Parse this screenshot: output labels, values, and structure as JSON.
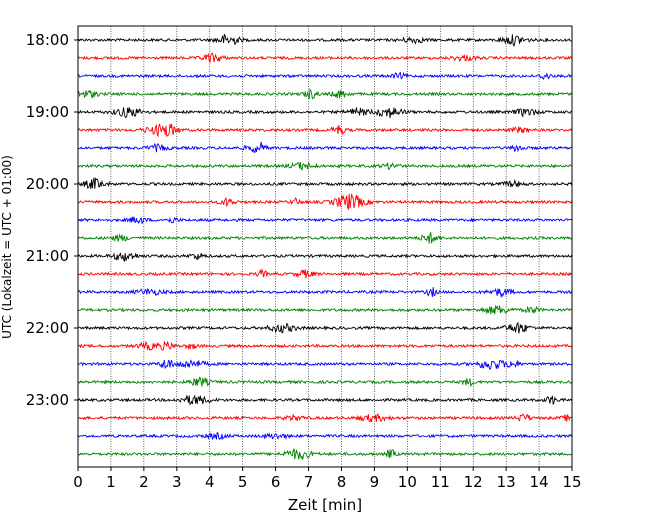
{
  "chart_data": {
    "type": "line",
    "subtype": "helicorder seismogram",
    "xlabel": "Zeit  [min]",
    "ylabel": "UTC (Lokalzeit = UTC + 01:00)",
    "xlim": [
      0,
      15
    ],
    "x_ticks": [
      "0",
      "1",
      "2",
      "3",
      "4",
      "5",
      "6",
      "7",
      "8",
      "9",
      "10",
      "11",
      "12",
      "13",
      "14",
      "15"
    ],
    "y_tick_labels": [
      "18:00",
      "19:00",
      "20:00",
      "21:00",
      "22:00",
      "23:00"
    ],
    "minutes_per_trace": 15,
    "traces_per_hour": 4,
    "trace_count": 24,
    "trace_colors": [
      "#000000",
      "#ff0000",
      "#0000ff",
      "#008000"
    ],
    "grid": "vertical dotted lines at every minute",
    "series": [
      {
        "start": "18:00",
        "color": "#000000"
      },
      {
        "start": "18:15",
        "color": "#ff0000"
      },
      {
        "start": "18:30",
        "color": "#0000ff"
      },
      {
        "start": "18:45",
        "color": "#008000"
      },
      {
        "start": "19:00",
        "color": "#000000"
      },
      {
        "start": "19:15",
        "color": "#ff0000"
      },
      {
        "start": "19:30",
        "color": "#0000ff"
      },
      {
        "start": "19:45",
        "color": "#008000"
      },
      {
        "start": "20:00",
        "color": "#000000"
      },
      {
        "start": "20:15",
        "color": "#ff0000"
      },
      {
        "start": "20:30",
        "color": "#0000ff"
      },
      {
        "start": "20:45",
        "color": "#008000"
      },
      {
        "start": "21:00",
        "color": "#000000"
      },
      {
        "start": "21:15",
        "color": "#ff0000"
      },
      {
        "start": "21:30",
        "color": "#0000ff"
      },
      {
        "start": "21:45",
        "color": "#008000"
      },
      {
        "start": "22:00",
        "color": "#000000"
      },
      {
        "start": "22:15",
        "color": "#ff0000"
      },
      {
        "start": "22:30",
        "color": "#0000ff"
      },
      {
        "start": "22:45",
        "color": "#008000"
      },
      {
        "start": "23:00",
        "color": "#000000"
      },
      {
        "start": "23:15",
        "color": "#ff0000"
      },
      {
        "start": "23:30",
        "color": "#0000ff"
      },
      {
        "start": "23:45",
        "color": "#008000"
      }
    ]
  }
}
